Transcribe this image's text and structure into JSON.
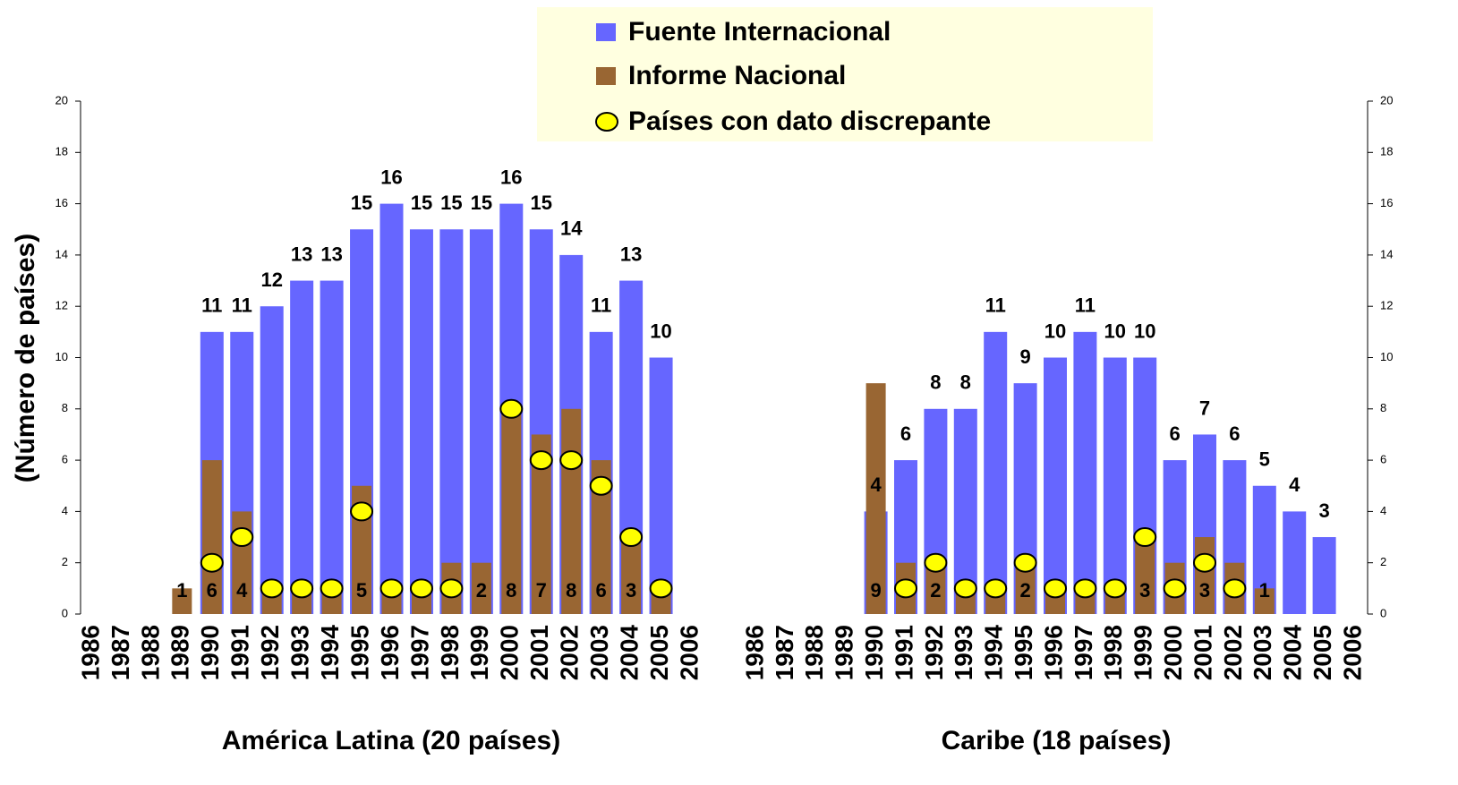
{
  "chart_data": [
    {
      "type": "bar",
      "title": "América Latina (20 países)",
      "y_label": "(Número de países)",
      "categories": [
        "1986",
        "1987",
        "1988",
        "1989",
        "1990",
        "1991",
        "1992",
        "1993",
        "1994",
        "1995",
        "1996",
        "1997",
        "1998",
        "1999",
        "2000",
        "2001",
        "2002",
        "2003",
        "2004",
        "2005",
        "2006"
      ],
      "ylim": [
        0,
        20
      ],
      "yticks": [
        0,
        2,
        4,
        6,
        8,
        10,
        12,
        14,
        16,
        18,
        20
      ],
      "axis_side": "left",
      "series": [
        {
          "name": "Fuente Internacional",
          "color": "#6666ff",
          "kind": "bar",
          "values": [
            null,
            null,
            null,
            null,
            11,
            11,
            12,
            13,
            13,
            15,
            16,
            15,
            15,
            15,
            16,
            15,
            14,
            11,
            13,
            10,
            null
          ]
        },
        {
          "name": "Informe Nacional",
          "color": "#996633",
          "kind": "bar",
          "values": [
            null,
            null,
            null,
            1,
            6,
            4,
            1,
            1,
            1,
            5,
            1,
            1,
            2,
            2,
            8,
            7,
            8,
            6,
            3,
            1,
            null
          ]
        },
        {
          "name": "Países con dato discrepante",
          "color": "#ffff00",
          "kind": "marker",
          "values": [
            null,
            null,
            null,
            null,
            2,
            3,
            1,
            1,
            1,
            4,
            1,
            1,
            1,
            null,
            8,
            6,
            6,
            5,
            3,
            1,
            null
          ]
        }
      ]
    },
    {
      "type": "bar",
      "title": "Caribe (18 países)",
      "categories": [
        "1986",
        "1987",
        "1988",
        "1989",
        "1990",
        "1991",
        "1992",
        "1993",
        "1994",
        "1995",
        "1996",
        "1997",
        "1998",
        "1999",
        "2000",
        "2001",
        "2002",
        "2003",
        "2004",
        "2005",
        "2006"
      ],
      "ylim": [
        0,
        20
      ],
      "yticks": [
        0,
        2,
        4,
        6,
        8,
        10,
        12,
        14,
        16,
        18,
        20
      ],
      "axis_side": "right",
      "series": [
        {
          "color": "#6666ff",
          "kind": "bar",
          "values": [
            null,
            null,
            null,
            null,
            4,
            6,
            8,
            8,
            11,
            9,
            10,
            11,
            10,
            10,
            6,
            7,
            6,
            5,
            4,
            3,
            null
          ]
        },
        {
          "color": "#996633",
          "kind": "bar",
          "values": [
            null,
            null,
            null,
            null,
            9,
            2,
            2,
            1,
            1,
            2,
            1,
            1,
            1,
            3,
            2,
            3,
            2,
            1,
            null,
            null,
            null
          ]
        },
        {
          "color": "#ffff00",
          "kind": "marker",
          "values": [
            null,
            null,
            null,
            null,
            null,
            1,
            2,
            1,
            1,
            2,
            1,
            1,
            1,
            3,
            1,
            2,
            1,
            null,
            null,
            null,
            null
          ]
        }
      ]
    }
  ]
}
